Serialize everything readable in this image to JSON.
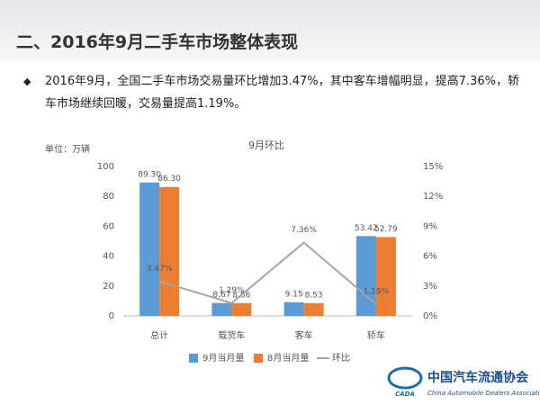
{
  "header": {
    "title": "二、2016年9月二手车市场整体表现"
  },
  "bullet": "2016年9月，全国二手车市场交易量环比增加3.47%，其中客车增幅明显，提高7.36%，轿车市场继续回暖，交易量提高1.19%。",
  "logo": {
    "mark": "CADA",
    "name": "中国汽车流通协会",
    "english": "China Automobile Dealers Association"
  },
  "chart_data": {
    "type": "bar",
    "title": "9月环比",
    "unit_label": "单位：万辆",
    "categories": [
      "总计",
      "载货车",
      "客车",
      "轿车"
    ],
    "series": [
      {
        "name": "9月当月量",
        "color": "#5b9bd5",
        "values": [
          89.3,
          8.67,
          9.15,
          53.42
        ],
        "value_labels": [
          "89.30",
          "8.67",
          "9.15",
          "53.42"
        ]
      },
      {
        "name": "8月当月量",
        "color": "#ed7d31",
        "values": [
          86.3,
          8.56,
          8.53,
          52.79
        ],
        "value_labels": [
          "86.30",
          "8.56",
          "8.53",
          "52.79"
        ]
      },
      {
        "name": "环比",
        "type": "line",
        "axis": "y2",
        "color": "#a5a5a5",
        "values": [
          3.47,
          1.29,
          7.36,
          1.19
        ],
        "value_labels": [
          "3.47%",
          "1.29%",
          "7.36%",
          "1.19%"
        ]
      }
    ],
    "ylim": [
      0,
      100
    ],
    "yticks": [
      0,
      20,
      40,
      60,
      80,
      100
    ],
    "y2lim": [
      0,
      15
    ],
    "y2ticks": [
      {
        "value": 0,
        "label": "0%"
      },
      {
        "value": 3,
        "label": "3%"
      },
      {
        "value": 6,
        "label": "6%"
      },
      {
        "value": 9,
        "label": "9%"
      },
      {
        "value": 12,
        "label": "12%"
      },
      {
        "value": 15,
        "label": "15%"
      }
    ],
    "grid": false,
    "legend": "bottom"
  }
}
